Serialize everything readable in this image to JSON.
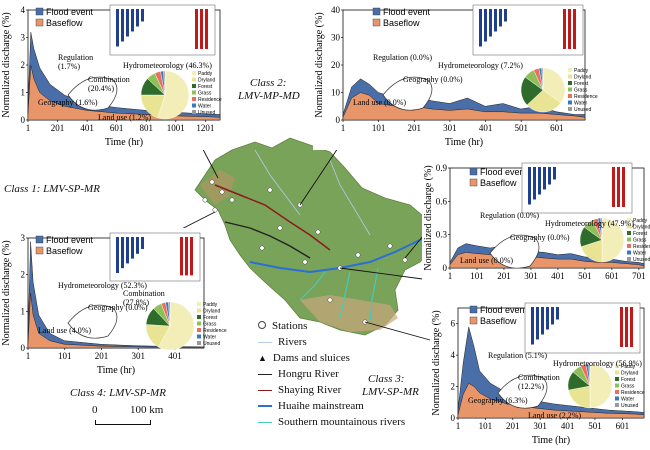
{
  "chart_data": [
    {
      "type": "area",
      "panel": "top-left",
      "ylabel": "Normalized discharge (%)",
      "xlabel": "Time (hr)",
      "xticks": [
        "1",
        "201",
        "401",
        "601",
        "801",
        "1001",
        "1201"
      ],
      "yticks": [
        "0",
        "1",
        "2",
        "3",
        "4"
      ],
      "ylim": [
        0,
        4
      ],
      "xlim": [
        1,
        1300
      ],
      "series": [
        {
          "name": "Flood event",
          "color": "#4a6fa8"
        },
        {
          "name": "Baseflow",
          "color": "#e8956a"
        }
      ],
      "flood_points": [
        [
          1,
          0.5
        ],
        [
          20,
          3.2
        ],
        [
          40,
          2.6
        ],
        [
          80,
          1.9
        ],
        [
          150,
          1.3
        ],
        [
          250,
          0.9
        ],
        [
          400,
          0.6
        ],
        [
          600,
          0.45
        ],
        [
          800,
          0.35
        ],
        [
          1000,
          0.28
        ],
        [
          1200,
          0.22
        ],
        [
          1300,
          0.2
        ]
      ],
      "base_points": [
        [
          1,
          0.2
        ],
        [
          20,
          2.0
        ],
        [
          40,
          1.5
        ],
        [
          80,
          1.0
        ],
        [
          150,
          0.7
        ],
        [
          250,
          0.5
        ],
        [
          400,
          0.35
        ],
        [
          600,
          0.25
        ],
        [
          800,
          0.2
        ],
        [
          1000,
          0.15
        ],
        [
          1200,
          0.12
        ],
        [
          1300,
          0.1
        ]
      ],
      "annotations": [
        "Regulation\n(1.7%)",
        "Hydrometeorology (46.3%)",
        "Combination\n(20.4%)",
        "Geography (1.6%)",
        "Land use (1.2%)"
      ]
    },
    {
      "type": "area",
      "panel": "top-right",
      "ylabel": "Normalized discharge (%)",
      "xlabel": "Time (hr)",
      "xticks": [
        "1",
        "101",
        "201",
        "301",
        "401",
        "501",
        "601"
      ],
      "yticks": [
        "0",
        "10",
        "20",
        "30",
        "40"
      ],
      "ylim": [
        0,
        40
      ],
      "xlim": [
        1,
        680
      ],
      "series": [
        {
          "name": "Flood event",
          "color": "#4a6fa8"
        },
        {
          "name": "Baseflow",
          "color": "#e8956a"
        }
      ],
      "flood_points": [
        [
          1,
          2
        ],
        [
          25,
          12
        ],
        [
          50,
          15
        ],
        [
          75,
          13
        ],
        [
          100,
          10
        ],
        [
          150,
          8
        ],
        [
          200,
          9
        ],
        [
          250,
          7
        ],
        [
          300,
          6
        ],
        [
          350,
          8
        ],
        [
          400,
          5
        ],
        [
          450,
          6
        ],
        [
          500,
          4
        ],
        [
          550,
          5
        ],
        [
          600,
          3
        ],
        [
          650,
          2
        ],
        [
          680,
          2
        ]
      ],
      "base_points": [
        [
          1,
          1
        ],
        [
          25,
          8
        ],
        [
          50,
          10
        ],
        [
          75,
          9
        ],
        [
          100,
          6
        ],
        [
          150,
          5
        ],
        [
          200,
          5
        ],
        [
          250,
          4
        ],
        [
          300,
          3.5
        ],
        [
          350,
          4
        ],
        [
          400,
          3
        ],
        [
          450,
          3
        ],
        [
          500,
          2.5
        ],
        [
          550,
          2.5
        ],
        [
          600,
          2
        ],
        [
          650,
          1.5
        ],
        [
          680,
          1
        ]
      ],
      "annotations": [
        "Regulation (0.0%)",
        "Hydrometeorology (7.2%)",
        "Geography (0.0%)",
        "Land use (0.0%)"
      ]
    },
    {
      "type": "area",
      "panel": "middle-right",
      "ylabel": "Normalized discharge (%)",
      "xlabel": "",
      "xticks": [
        "1",
        "101",
        "201",
        "301",
        "401",
        "501",
        "601",
        "701"
      ],
      "yticks": [
        "0",
        "0.3",
        "0.6",
        "0.9"
      ],
      "ylim": [
        0,
        0.9
      ],
      "xlim": [
        1,
        720
      ],
      "series": [
        {
          "name": "Flood event",
          "color": "#4a6fa8"
        },
        {
          "name": "Baseflow",
          "color": "#e8956a"
        }
      ],
      "flood_points": [
        [
          1,
          0.05
        ],
        [
          30,
          0.18
        ],
        [
          60,
          0.22
        ],
        [
          100,
          0.2
        ],
        [
          150,
          0.18
        ],
        [
          200,
          0.2
        ],
        [
          250,
          0.17
        ],
        [
          300,
          0.15
        ],
        [
          350,
          0.14
        ],
        [
          400,
          0.12
        ],
        [
          450,
          0.13
        ],
        [
          500,
          0.1
        ],
        [
          550,
          0.09
        ],
        [
          600,
          0.08
        ],
        [
          650,
          0.06
        ],
        [
          700,
          0.05
        ],
        [
          720,
          0.04
        ]
      ],
      "base_points": [
        [
          1,
          0.03
        ],
        [
          30,
          0.12
        ],
        [
          60,
          0.14
        ],
        [
          100,
          0.13
        ],
        [
          150,
          0.12
        ],
        [
          200,
          0.13
        ],
        [
          250,
          0.11
        ],
        [
          300,
          0.1
        ],
        [
          350,
          0.09
        ],
        [
          400,
          0.08
        ],
        [
          450,
          0.08
        ],
        [
          500,
          0.06
        ],
        [
          550,
          0.05
        ],
        [
          600,
          0.05
        ],
        [
          650,
          0.04
        ],
        [
          700,
          0.03
        ],
        [
          720,
          0.02
        ]
      ],
      "annotations": [
        "Regulation (0.0%)",
        "Hydrometeorology (47.9%)",
        "Geography (0.0%)",
        "Land use (0.0%)"
      ]
    },
    {
      "type": "area",
      "panel": "bottom-left",
      "ylabel": "Normalized discharge (%)",
      "xlabel": "Time (hr)",
      "xticks": [
        "1",
        "101",
        "201",
        "301",
        "401"
      ],
      "yticks": [
        "0",
        "1",
        "2",
        "3"
      ],
      "ylim": [
        0,
        3
      ],
      "xlim": [
        1,
        480
      ],
      "series": [
        {
          "name": "Flood event",
          "color": "#4a6fa8"
        },
        {
          "name": "Baseflow",
          "color": "#e8956a"
        }
      ],
      "flood_points": [
        [
          1,
          0.3
        ],
        [
          8,
          2.9
        ],
        [
          15,
          1.8
        ],
        [
          30,
          0.9
        ],
        [
          60,
          0.4
        ],
        [
          100,
          0.2
        ],
        [
          200,
          0.1
        ],
        [
          300,
          0.06
        ],
        [
          400,
          0.04
        ],
        [
          480,
          0.03
        ]
      ],
      "base_points": [
        [
          1,
          0.1
        ],
        [
          8,
          1.5
        ],
        [
          15,
          0.9
        ],
        [
          30,
          0.4
        ],
        [
          60,
          0.2
        ],
        [
          100,
          0.1
        ],
        [
          200,
          0.05
        ],
        [
          300,
          0.03
        ],
        [
          400,
          0.02
        ],
        [
          480,
          0.02
        ]
      ],
      "annotations": [
        "Hydrometeorology (52.3%)",
        "Combination\n(27.8%)",
        "Geography (0.0%)",
        "Land use (4.0%)"
      ]
    },
    {
      "type": "area",
      "panel": "bottom-right",
      "ylabel": "Normalized discharge (%)",
      "xlabel": "Time (hr)",
      "xticks": [
        "1",
        "101",
        "201",
        "301",
        "401",
        "501",
        "601"
      ],
      "yticks": [
        "0",
        "2",
        "4",
        "6"
      ],
      "ylim": [
        0,
        7
      ],
      "xlim": [
        1,
        680
      ],
      "series": [
        {
          "name": "Flood event",
          "color": "#4a6fa8"
        },
        {
          "name": "Baseflow",
          "color": "#e8956a"
        }
      ],
      "flood_points": [
        [
          1,
          0.5
        ],
        [
          20,
          3.5
        ],
        [
          40,
          5.8
        ],
        [
          60,
          4.5
        ],
        [
          80,
          3.0
        ],
        [
          120,
          2.2
        ],
        [
          180,
          1.6
        ],
        [
          250,
          1.2
        ],
        [
          350,
          0.9
        ],
        [
          450,
          0.7
        ],
        [
          550,
          0.5
        ],
        [
          650,
          0.4
        ],
        [
          680,
          0.35
        ]
      ],
      "base_points": [
        [
          1,
          0.2
        ],
        [
          20,
          1.5
        ],
        [
          40,
          2.2
        ],
        [
          60,
          2.0
        ],
        [
          80,
          1.6
        ],
        [
          120,
          1.2
        ],
        [
          180,
          0.9
        ],
        [
          250,
          0.7
        ],
        [
          350,
          0.5
        ],
        [
          450,
          0.4
        ],
        [
          550,
          0.3
        ],
        [
          650,
          0.25
        ],
        [
          680,
          0.2
        ]
      ],
      "annotations": [
        "Regulation (5.1%)",
        "Hydrometeorology (56.9%)",
        "Combination\n(12.2%)",
        "Geography (6.3%)",
        "Land use (2.2%)"
      ]
    }
  ],
  "pie_legend": [
    "Paddy",
    "Dryland",
    "Forest",
    "Grass",
    "Residence",
    "Water",
    "Unused"
  ],
  "pie_colors": [
    "#f3eeb8",
    "#e8e493",
    "#2f6b2a",
    "#8fbf5a",
    "#ef6e5b",
    "#3b78c4",
    "#9a9a9a"
  ],
  "classes": {
    "class1": "Class 1: LMV-SP-MR",
    "class2_a": "Class 2:",
    "class2_b": "LMV-MP-MD",
    "class3_a": "Class 3:",
    "class3_b": "LMV-SP-MR",
    "class4": "Class 4: LMV-SP-MR"
  },
  "map_legend": {
    "stations": "Stations",
    "rivers": "Rivers",
    "dams": "Dams and sluices",
    "hongru": "Hongru River",
    "shaying": "Shaying River",
    "huaihe": "Huaihe mainstream",
    "southern": "Southern mountainous rivers"
  },
  "scale": {
    "zero": "0",
    "hundred": "100 km"
  },
  "colors": {
    "flood": "#4a6fa8",
    "baseflow": "#e8956a",
    "map_fill": "#7aa35a",
    "huaihe": "#2a6fd6",
    "hongru": "#222222",
    "shaying": "#8b1a1a",
    "southern": "#49c9b9"
  }
}
